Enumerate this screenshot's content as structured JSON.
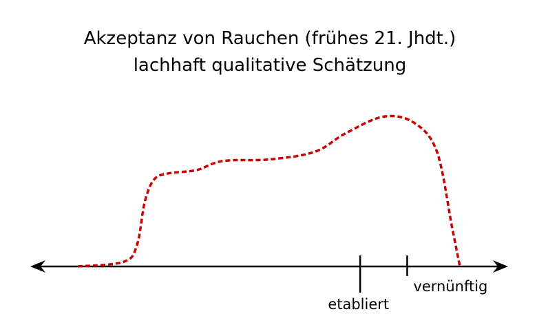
{
  "chart_data": {
    "type": "line",
    "title": "Akzeptanz von Rauchen (frühes 21. Jhdt.)",
    "subtitle": "lachhaft qualitative Schätzung",
    "xlabel": "",
    "ylabel": "",
    "xlim": [
      0,
      100
    ],
    "ylim": [
      0,
      100
    ],
    "grid": false,
    "legend": "none",
    "axis": {
      "arrows": "both",
      "color": "#000000"
    },
    "ticks": [
      {
        "x": 73.9,
        "label": "etabliert",
        "label_position": "below-left"
      },
      {
        "x": 86.2,
        "label": "vernünftig",
        "label_position": "below-right"
      }
    ],
    "series": [
      {
        "color": "#cc0000",
        "dash": "dashed",
        "smooth": true,
        "points": [
          {
            "x": 0.0,
            "y": 0
          },
          {
            "x": 12.0,
            "y": 3
          },
          {
            "x": 15.5,
            "y": 14
          },
          {
            "x": 17.5,
            "y": 42
          },
          {
            "x": 20.0,
            "y": 57
          },
          {
            "x": 24.0,
            "y": 61
          },
          {
            "x": 31.0,
            "y": 63
          },
          {
            "x": 38.0,
            "y": 69
          },
          {
            "x": 50.0,
            "y": 70
          },
          {
            "x": 62.0,
            "y": 75
          },
          {
            "x": 70.0,
            "y": 87
          },
          {
            "x": 80.0,
            "y": 98
          },
          {
            "x": 88.0,
            "y": 94
          },
          {
            "x": 94.0,
            "y": 75
          },
          {
            "x": 98.0,
            "y": 25
          },
          {
            "x": 100.0,
            "y": 0
          }
        ]
      }
    ]
  }
}
